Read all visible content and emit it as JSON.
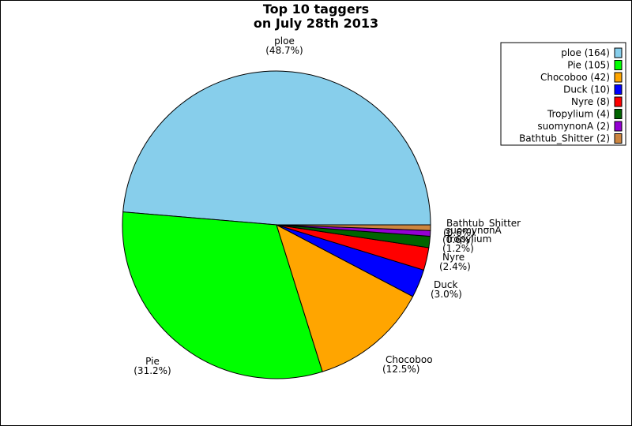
{
  "chart_data": {
    "type": "pie",
    "title": [
      "Top 10 taggers",
      "on July 28th 2013"
    ],
    "slices": [
      {
        "name": "ploe",
        "value": 164,
        "percent": "48.7%",
        "color": "#87ceeb"
      },
      {
        "name": "Pie",
        "value": 105,
        "percent": "31.2%",
        "color": "#00ff00"
      },
      {
        "name": "Chocoboo",
        "value": 42,
        "percent": "12.5%",
        "color": "#ffa500"
      },
      {
        "name": "Duck",
        "value": 10,
        "percent": "3.0%",
        "color": "#0000ff"
      },
      {
        "name": "Nyre",
        "value": 8,
        "percent": "2.4%",
        "color": "#ff0000"
      },
      {
        "name": "Tropylium",
        "value": 4,
        "percent": "1.2%",
        "color": "#006400"
      },
      {
        "name": "suomynonA",
        "value": 2,
        "percent": "0.6%",
        "color": "#9400d3"
      },
      {
        "name": "Bathtub_Shitter",
        "value": 2,
        "percent": "0.6%",
        "color": "#cd853f"
      }
    ],
    "legend_entries": [
      "ploe (164)",
      "Pie (105)",
      "Chocoboo (42)",
      "Duck (10)",
      "Nyre (8)",
      "Tropylium (4)",
      "suomynonA (2)",
      "Bathtub_Shitter (2)"
    ],
    "legend_position": "top-right"
  }
}
